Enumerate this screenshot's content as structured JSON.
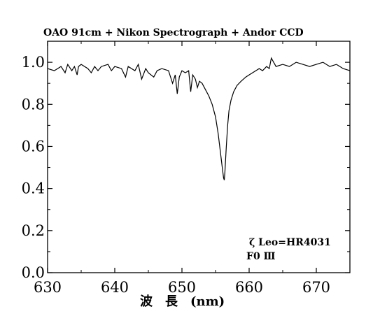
{
  "chart_data": {
    "type": "line",
    "title": "OAO 91cm + Nikon Spectrograph + Andor CCD",
    "xlabel": "波　長　(nm)",
    "ylabel": "",
    "xlim": [
      630,
      675
    ],
    "ylim": [
      0.0,
      1.1
    ],
    "x_ticks": [
      630,
      640,
      650,
      660,
      670
    ],
    "x_tick_labels": [
      "630",
      "640",
      "650",
      "660",
      "670"
    ],
    "y_ticks": [
      0.0,
      0.2,
      0.4,
      0.6,
      0.8,
      1.0
    ],
    "y_tick_labels": [
      "0.0",
      "0.2",
      "0.4",
      "0.6",
      "0.8",
      "1.0"
    ],
    "grid": false,
    "annotations": [
      "ζ Leo=HR4031",
      "F0 Ⅲ"
    ],
    "series": [
      {
        "x": [
          630.0,
          631.0,
          632.0,
          632.6,
          633.0,
          633.6,
          634.0,
          634.4,
          634.6,
          635.0,
          636.0,
          636.5,
          637.0,
          637.5,
          638.0,
          639.0,
          639.5,
          640.0,
          641.0,
          641.6,
          642.0,
          643.0,
          643.5,
          644.0,
          644.6,
          645.0,
          645.8,
          646.3,
          647.0,
          648.0,
          648.6,
          649.0,
          649.3,
          649.6,
          650.0,
          650.5,
          651.0,
          651.3,
          651.6,
          652.0,
          652.3,
          652.6,
          653.0,
          653.5,
          654.0,
          654.5,
          655.0,
          655.4,
          655.7,
          656.0,
          656.2,
          656.3,
          656.4,
          656.6,
          656.8,
          657.0,
          657.3,
          657.7,
          658.2,
          658.8,
          659.5,
          660.0,
          660.5,
          661.0,
          661.5,
          662.0,
          662.6,
          663.0,
          663.3,
          664.0,
          665.0,
          666.0,
          667.0,
          668.0,
          669.0,
          670.0,
          671.0,
          672.0,
          673.0,
          674.0,
          675.0
        ],
        "values": [
          0.97,
          0.96,
          0.98,
          0.95,
          0.99,
          0.96,
          0.98,
          0.94,
          0.98,
          0.99,
          0.97,
          0.95,
          0.98,
          0.96,
          0.98,
          0.99,
          0.96,
          0.98,
          0.97,
          0.93,
          0.98,
          0.96,
          0.99,
          0.92,
          0.97,
          0.95,
          0.93,
          0.96,
          0.97,
          0.96,
          0.9,
          0.94,
          0.85,
          0.93,
          0.96,
          0.95,
          0.96,
          0.86,
          0.94,
          0.92,
          0.88,
          0.91,
          0.9,
          0.87,
          0.84,
          0.8,
          0.74,
          0.66,
          0.58,
          0.5,
          0.45,
          0.44,
          0.48,
          0.6,
          0.7,
          0.77,
          0.82,
          0.86,
          0.89,
          0.91,
          0.93,
          0.94,
          0.95,
          0.96,
          0.97,
          0.96,
          0.98,
          0.97,
          1.02,
          0.98,
          0.99,
          0.98,
          1.0,
          0.99,
          0.98,
          0.99,
          1.0,
          0.98,
          0.99,
          0.97,
          0.96
        ]
      }
    ]
  }
}
